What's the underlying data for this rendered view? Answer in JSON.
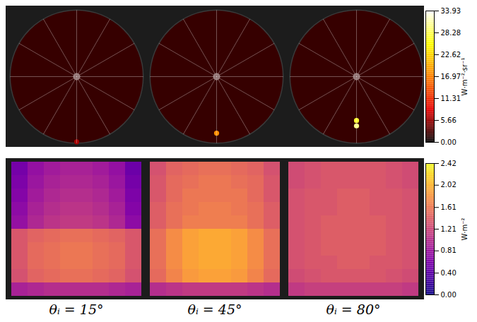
{
  "chart_data": [
    {
      "type": "polar_heatmap",
      "color": "hot",
      "colorbar": {
        "range": [
          0,
          33.93
        ],
        "label": "W·m⁻²·sr⁻¹",
        "ticks": [
          {
            "value": 0,
            "label": "0.00"
          },
          {
            "value": 5.66,
            "label": "5.66"
          },
          {
            "value": 11.31,
            "label": "11.31"
          },
          {
            "value": 16.97,
            "label": "16.97"
          },
          {
            "value": 22.62,
            "label": "22.62"
          },
          {
            "value": 28.28,
            "label": "28.28"
          },
          {
            "value": 33.93,
            "label": "33.93"
          }
        ]
      },
      "panels": [
        {
          "background": 2.0,
          "peaks": [
            {
              "r": 0.98,
              "azimuth_deg": 270,
              "value": 6.0
            }
          ]
        },
        {
          "background": 2.0,
          "peaks": [
            {
              "r": 0.85,
              "azimuth_deg": 270,
              "value": 18.0
            }
          ]
        },
        {
          "background": 2.0,
          "peaks": [
            {
              "r": 0.66,
              "azimuth_deg": 270,
              "value": 27.0
            },
            {
              "r": 0.74,
              "azimuth_deg": 270,
              "value": 30.0
            }
          ]
        }
      ]
    },
    {
      "type": "heatmap",
      "color": "plasma",
      "colorbar": {
        "range": [
          0,
          2.42
        ],
        "label": "W·m⁻²",
        "ticks": [
          {
            "value": 0,
            "label": "0.00"
          },
          {
            "value": 0.4,
            "label": "0.40"
          },
          {
            "value": 0.81,
            "label": "0.81"
          },
          {
            "value": 1.21,
            "label": "1.21"
          },
          {
            "value": 1.61,
            "label": "1.61"
          },
          {
            "value": 2.02,
            "label": "2.02"
          },
          {
            "value": 2.42,
            "label": "2.42"
          }
        ]
      },
      "panels": [
        {
          "title": "θᵢ = 15°",
          "values": [
            [
              0.55,
              0.75,
              0.85,
              0.9,
              0.9,
              0.85,
              0.75,
              0.5
            ],
            [
              0.6,
              0.8,
              0.9,
              0.95,
              0.95,
              0.9,
              0.8,
              0.55
            ],
            [
              0.65,
              0.85,
              0.95,
              1.0,
              1.0,
              0.95,
              0.85,
              0.6
            ],
            [
              0.7,
              0.9,
              1.0,
              1.05,
              1.05,
              1.0,
              0.9,
              0.65
            ],
            [
              0.75,
              0.95,
              1.05,
              1.1,
              1.1,
              1.05,
              0.95,
              0.7
            ],
            [
              1.35,
              1.45,
              1.5,
              1.55,
              1.55,
              1.5,
              1.45,
              1.35
            ],
            [
              1.35,
              1.5,
              1.55,
              1.6,
              1.6,
              1.55,
              1.5,
              1.35
            ],
            [
              1.35,
              1.5,
              1.55,
              1.6,
              1.6,
              1.55,
              1.5,
              1.35
            ],
            [
              1.3,
              1.45,
              1.5,
              1.55,
              1.55,
              1.5,
              1.45,
              1.3
            ],
            [
              0.9,
              0.95,
              1.0,
              1.0,
              1.0,
              1.0,
              0.95,
              0.9
            ]
          ]
        },
        {
          "title": "θᵢ = 45°",
          "values": [
            [
              1.3,
              1.45,
              1.5,
              1.55,
              1.55,
              1.5,
              1.45,
              1.3
            ],
            [
              1.35,
              1.5,
              1.55,
              1.6,
              1.6,
              1.55,
              1.5,
              1.35
            ],
            [
              1.35,
              1.5,
              1.6,
              1.6,
              1.6,
              1.6,
              1.5,
              1.35
            ],
            [
              1.4,
              1.55,
              1.6,
              1.65,
              1.65,
              1.6,
              1.55,
              1.4
            ],
            [
              1.4,
              1.55,
              1.65,
              1.65,
              1.65,
              1.65,
              1.55,
              1.4
            ],
            [
              1.55,
              1.75,
              1.9,
              1.95,
              1.95,
              1.9,
              1.75,
              1.55
            ],
            [
              1.55,
              1.75,
              1.9,
              1.95,
              1.95,
              1.9,
              1.75,
              1.55
            ],
            [
              1.55,
              1.75,
              1.9,
              1.95,
              1.95,
              1.9,
              1.75,
              1.55
            ],
            [
              1.5,
              1.7,
              1.85,
              1.9,
              1.9,
              1.85,
              1.7,
              1.5
            ],
            [
              1.0,
              1.05,
              1.1,
              1.1,
              1.1,
              1.1,
              1.05,
              1.0
            ]
          ]
        },
        {
          "title": "θᵢ = 80°",
          "values": [
            [
              1.25,
              1.3,
              1.35,
              1.35,
              1.35,
              1.35,
              1.3,
              1.25
            ],
            [
              1.25,
              1.3,
              1.35,
              1.35,
              1.35,
              1.35,
              1.3,
              1.25
            ],
            [
              1.3,
              1.35,
              1.35,
              1.4,
              1.4,
              1.35,
              1.35,
              1.3
            ],
            [
              1.3,
              1.35,
              1.35,
              1.4,
              1.4,
              1.35,
              1.35,
              1.3
            ],
            [
              1.3,
              1.35,
              1.4,
              1.4,
              1.4,
              1.4,
              1.35,
              1.3
            ],
            [
              1.3,
              1.35,
              1.4,
              1.4,
              1.4,
              1.4,
              1.35,
              1.3
            ],
            [
              1.3,
              1.35,
              1.4,
              1.4,
              1.4,
              1.4,
              1.35,
              1.3
            ],
            [
              1.3,
              1.35,
              1.35,
              1.4,
              1.4,
              1.35,
              1.35,
              1.3
            ],
            [
              1.25,
              1.3,
              1.35,
              1.35,
              1.35,
              1.35,
              1.3,
              1.25
            ],
            [
              1.1,
              1.15,
              1.15,
              1.15,
              1.15,
              1.15,
              1.15,
              1.1
            ]
          ]
        }
      ]
    }
  ]
}
